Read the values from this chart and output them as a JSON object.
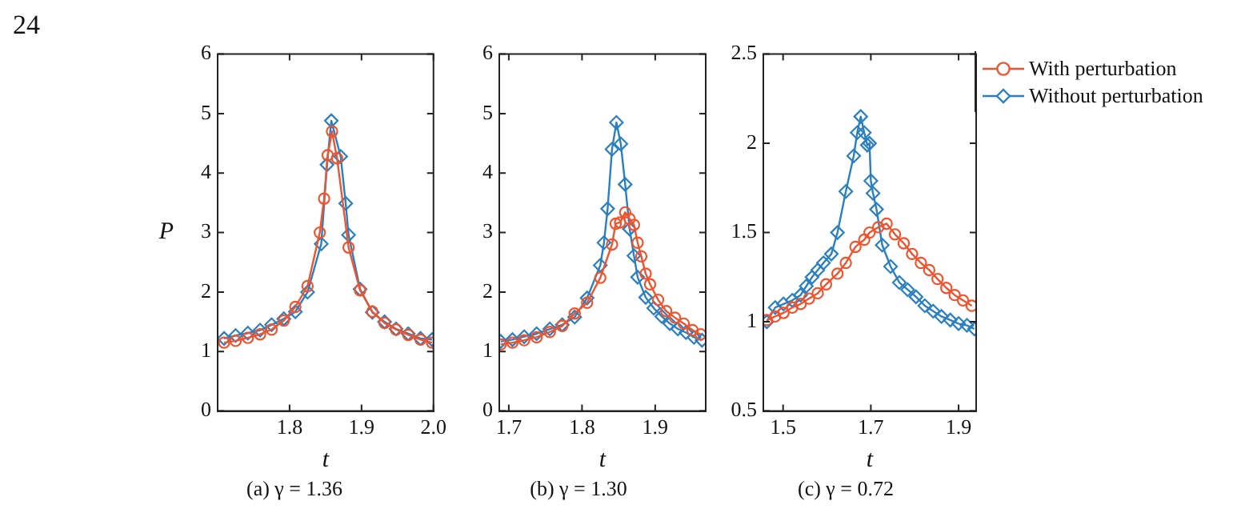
{
  "chart_data": [
    {
      "type": "line",
      "title": "(a) γ = 1.36",
      "xlabel": "t",
      "ylabel": "P",
      "annotations": [
        "24"
      ],
      "xlim": [
        1.7,
        2.0
      ],
      "xticks": [
        1.8,
        1.9,
        {
          "value": 2.0,
          "label": "2.0"
        }
      ],
      "ylim": [
        0,
        6
      ],
      "yticks": [
        0,
        1,
        2,
        3,
        4,
        5,
        6
      ],
      "grid": false,
      "legend": false,
      "series": [
        {
          "color": "#f0532d",
          "marker": "circle",
          "x": [
            1.709,
            1.725,
            1.742,
            1.759,
            1.775,
            1.792,
            1.808,
            1.825,
            1.842,
            1.848,
            1.853,
            1.859,
            1.866,
            1.882,
            1.898,
            1.915,
            1.932,
            1.948,
            1.965,
            1.982,
            1.998
          ],
          "values": [
            1.15,
            1.18,
            1.23,
            1.29,
            1.37,
            1.52,
            1.75,
            2.1,
            3.0,
            3.57,
            4.3,
            4.7,
            4.25,
            2.75,
            2.03,
            1.67,
            1.48,
            1.37,
            1.28,
            1.2,
            1.15
          ]
        },
        {
          "color": "#2a7fc1",
          "marker": "diamond",
          "x": [
            1.709,
            1.725,
            1.742,
            1.759,
            1.775,
            1.792,
            1.808,
            1.825,
            1.844,
            1.852,
            1.858,
            1.871,
            1.878,
            1.882,
            1.898,
            1.915,
            1.932,
            1.948,
            1.965,
            1.982,
            1.998
          ],
          "values": [
            1.22,
            1.27,
            1.31,
            1.36,
            1.45,
            1.55,
            1.67,
            2.0,
            2.81,
            4.14,
            4.88,
            4.28,
            3.49,
            2.96,
            2.05,
            1.66,
            1.5,
            1.38,
            1.3,
            1.22,
            1.2
          ]
        }
      ]
    },
    {
      "type": "line",
      "title": "(b) γ = 1.30",
      "xlabel": "t",
      "xlim": [
        1.687,
        1.969
      ],
      "xticks": [
        1.7,
        1.8,
        1.9
      ],
      "ylim": [
        0,
        6
      ],
      "yticks": [
        0,
        1,
        2,
        3,
        4,
        5,
        6
      ],
      "grid": false,
      "legend": false,
      "series": [
        {
          "color": "#f0532d",
          "marker": "circle",
          "x": [
            1.689,
            1.705,
            1.721,
            1.738,
            1.756,
            1.773,
            1.79,
            1.807,
            1.825,
            1.841,
            1.846,
            1.852,
            1.859,
            1.865,
            1.871,
            1.876,
            1.881,
            1.887,
            1.893,
            1.904,
            1.915,
            1.927,
            1.939,
            1.951,
            1.962
          ],
          "values": [
            1.12,
            1.15,
            1.19,
            1.24,
            1.33,
            1.43,
            1.64,
            1.82,
            2.24,
            2.8,
            3.15,
            3.17,
            3.34,
            3.23,
            3.13,
            2.83,
            2.6,
            2.31,
            2.13,
            1.87,
            1.68,
            1.57,
            1.47,
            1.36,
            1.29
          ]
        },
        {
          "color": "#2a7fc1",
          "marker": "diamond",
          "x": [
            1.689,
            1.705,
            1.721,
            1.738,
            1.756,
            1.773,
            1.79,
            1.807,
            1.825,
            1.83,
            1.835,
            1.841,
            1.847,
            1.853,
            1.859,
            1.865,
            1.871,
            1.876,
            1.887,
            1.898,
            1.909,
            1.92,
            1.931,
            1.942,
            1.953,
            1.964
          ],
          "values": [
            1.17,
            1.2,
            1.25,
            1.3,
            1.38,
            1.45,
            1.58,
            1.9,
            2.45,
            2.83,
            3.4,
            4.4,
            4.85,
            4.49,
            3.81,
            3.06,
            2.61,
            2.25,
            1.91,
            1.73,
            1.59,
            1.47,
            1.38,
            1.32,
            1.24,
            1.19
          ]
        }
      ]
    },
    {
      "type": "line",
      "title": "(c) γ = 0.72",
      "xlabel": "t",
      "xlim": [
        1.455,
        1.94
      ],
      "xticks": [
        1.5,
        1.7,
        1.9
      ],
      "ylim": [
        0.5,
        2.5
      ],
      "yticks": [
        0.5,
        1,
        1.5,
        2,
        2.5
      ],
      "grid": false,
      "legend": "right",
      "series": [
        {
          "name": "With perturbation",
          "color": "#f0532d",
          "marker": "circle",
          "x": [
            1.463,
            1.482,
            1.501,
            1.521,
            1.54,
            1.559,
            1.579,
            1.598,
            1.624,
            1.643,
            1.665,
            1.685,
            1.697,
            1.717,
            1.736,
            1.755,
            1.775,
            1.794,
            1.814,
            1.833,
            1.852,
            1.872,
            1.891,
            1.91,
            1.93
          ],
          "values": [
            1.01,
            1.03,
            1.05,
            1.08,
            1.1,
            1.13,
            1.16,
            1.21,
            1.27,
            1.33,
            1.42,
            1.46,
            1.5,
            1.53,
            1.55,
            1.49,
            1.44,
            1.38,
            1.33,
            1.29,
            1.24,
            1.19,
            1.15,
            1.12,
            1.09
          ]
        },
        {
          "name": "Without perturbation",
          "color": "#2a7fc1",
          "marker": "diamond",
          "x": [
            1.463,
            1.482,
            1.501,
            1.521,
            1.54,
            1.553,
            1.566,
            1.579,
            1.592,
            1.61,
            1.624,
            1.643,
            1.661,
            1.669,
            1.677,
            1.685,
            1.692,
            1.697,
            1.7,
            1.705,
            1.713,
            1.726,
            1.745,
            1.765,
            1.784,
            1.803,
            1.823,
            1.842,
            1.861,
            1.881,
            1.9,
            1.919,
            1.936
          ],
          "values": [
            1.0,
            1.08,
            1.1,
            1.12,
            1.15,
            1.2,
            1.25,
            1.29,
            1.33,
            1.38,
            1.5,
            1.73,
            1.93,
            2.06,
            2.15,
            2.06,
            1.99,
            2.0,
            1.79,
            1.72,
            1.63,
            1.43,
            1.31,
            1.22,
            1.18,
            1.14,
            1.09,
            1.06,
            1.03,
            1.01,
            0.99,
            0.98,
            0.96
          ]
        }
      ]
    }
  ]
}
